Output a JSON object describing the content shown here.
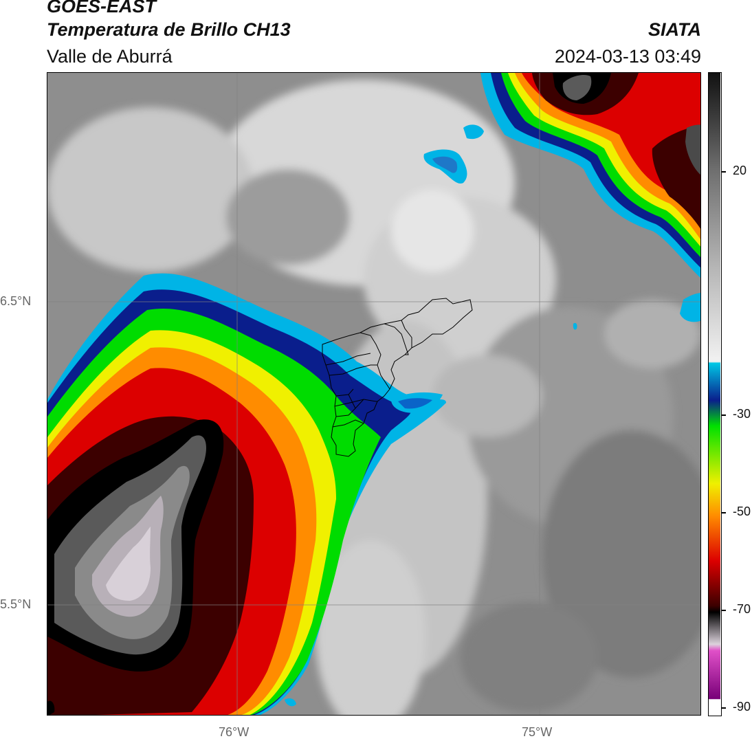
{
  "header": {
    "satellite": "GOES-EAST",
    "product": "Temperatura de Brillo CH13",
    "region": "Valle de Aburrá",
    "organization": "SIATA",
    "datetime": "2024-03-13 03:49"
  },
  "map": {
    "lat_labels": [
      "6.5°N",
      "5.5°N"
    ],
    "lon_labels": [
      "76°W",
      "75°W"
    ],
    "overlay": "municipal-boundaries"
  },
  "colorbar": {
    "tick_labels": [
      "20",
      "-30",
      "-50",
      "-70",
      "-90"
    ],
    "colors": {
      "warm_gray_top": "#1a1a1a",
      "white": "#f2f2f2",
      "cyan": "#00c8e6",
      "blue": "#0a1e8c",
      "green": "#00e000",
      "yellow": "#f0f000",
      "orange": "#ff8c00",
      "red": "#dc0000",
      "dark_red": "#3c0000",
      "black": "#000000",
      "light_gray": "#dcd2dc",
      "magenta": "#e050c8",
      "purple": "#780078"
    }
  }
}
